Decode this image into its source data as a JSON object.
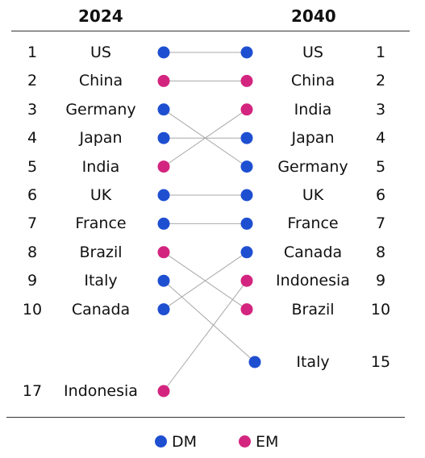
{
  "colors": {
    "DM": "#1f4fd1",
    "EM": "#d3257f",
    "line": "#a8a8a8"
  },
  "legend": [
    {
      "key": "DM",
      "label": "DM"
    },
    {
      "key": "EM",
      "label": "EM"
    }
  ],
  "chart_data": {
    "type": "slope",
    "left_header": "2024",
    "right_header": "2040",
    "left": [
      {
        "rank": "1",
        "country": "US",
        "group": "DM"
      },
      {
        "rank": "2",
        "country": "China",
        "group": "EM"
      },
      {
        "rank": "3",
        "country": "Germany",
        "group": "DM"
      },
      {
        "rank": "4",
        "country": "Japan",
        "group": "DM"
      },
      {
        "rank": "5",
        "country": "India",
        "group": "EM"
      },
      {
        "rank": "6",
        "country": "UK",
        "group": "DM"
      },
      {
        "rank": "7",
        "country": "France",
        "group": "DM"
      },
      {
        "rank": "8",
        "country": "Brazil",
        "group": "EM"
      },
      {
        "rank": "9",
        "country": "Italy",
        "group": "DM"
      },
      {
        "rank": "10",
        "country": "Canada",
        "group": "DM"
      },
      {
        "rank": "17",
        "country": "Indonesia",
        "group": "EM"
      }
    ],
    "right": [
      {
        "rank": "1",
        "country": "US",
        "group": "DM"
      },
      {
        "rank": "2",
        "country": "China",
        "group": "EM"
      },
      {
        "rank": "3",
        "country": "India",
        "group": "EM"
      },
      {
        "rank": "4",
        "country": "Japan",
        "group": "DM"
      },
      {
        "rank": "5",
        "country": "Germany",
        "group": "DM"
      },
      {
        "rank": "6",
        "country": "UK",
        "group": "DM"
      },
      {
        "rank": "7",
        "country": "France",
        "group": "DM"
      },
      {
        "rank": "8",
        "country": "Canada",
        "group": "DM"
      },
      {
        "rank": "9",
        "country": "Indonesia",
        "group": "EM"
      },
      {
        "rank": "10",
        "country": "Brazil",
        "group": "EM"
      },
      {
        "rank": "15",
        "country": "Italy",
        "group": "DM"
      }
    ]
  }
}
